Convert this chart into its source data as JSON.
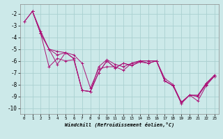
{
  "title": "",
  "xlabel": "Windchill (Refroidissement éolien,°C)",
  "ylabel": "",
  "background_color": "#cce9e9",
  "grid_color": "#aad0d0",
  "line_color": "#aa1177",
  "xlim": [
    -0.5,
    23.5
  ],
  "ylim": [
    -10.5,
    -1.2
  ],
  "xticks": [
    0,
    1,
    2,
    3,
    4,
    5,
    6,
    7,
    8,
    9,
    10,
    11,
    12,
    13,
    14,
    15,
    16,
    17,
    18,
    19,
    20,
    21,
    22,
    23
  ],
  "yticks": [
    -10,
    -9,
    -8,
    -7,
    -6,
    -5,
    -4,
    -3,
    -2
  ],
  "series": [
    {
      "x": [
        0,
        1,
        2,
        3,
        4,
        5,
        6,
        7,
        8,
        9,
        10,
        11,
        12,
        13,
        14,
        15,
        16,
        17,
        18,
        19,
        20,
        21,
        22,
        23
      ],
      "y": [
        -2.7,
        -1.8,
        -3.7,
        -5.0,
        -6.3,
        -5.3,
        -5.8,
        -8.5,
        -8.6,
        -7.0,
        -6.0,
        -6.6,
        -6.2,
        -6.4,
        -6.1,
        -6.2,
        -6.0,
        -7.7,
        -8.1,
        -9.5,
        -8.9,
        -9.4,
        -8.1,
        -7.3
      ]
    },
    {
      "x": [
        1,
        2,
        3,
        4,
        5,
        6,
        7,
        8,
        9,
        10,
        11,
        12,
        13,
        14,
        15,
        16,
        17,
        18,
        19,
        20,
        21,
        22,
        23
      ],
      "y": [
        -1.8,
        -3.7,
        -6.5,
        -5.8,
        -6.0,
        -5.9,
        -8.5,
        -8.6,
        -7.0,
        -6.0,
        -6.6,
        -6.2,
        -6.4,
        -6.0,
        -6.2,
        -6.0,
        -7.7,
        -8.1,
        -9.6,
        -8.9,
        -9.0,
        -8.0,
        -7.3
      ]
    },
    {
      "x": [
        0,
        1,
        2,
        3,
        4,
        5,
        6,
        7,
        8,
        9,
        10,
        11,
        12,
        13,
        14,
        15,
        16,
        17,
        18,
        19,
        20,
        21,
        22,
        23
      ],
      "y": [
        -2.7,
        -1.8,
        -3.5,
        -5.0,
        -5.2,
        -5.3,
        -5.5,
        -6.2,
        -8.3,
        -6.7,
        -6.5,
        -6.5,
        -6.8,
        -6.2,
        -6.0,
        -6.0,
        -6.0,
        -7.5,
        -8.0,
        -9.5,
        -8.9,
        -8.9,
        -7.9,
        -7.2
      ]
    },
    {
      "x": [
        1,
        2,
        3,
        4,
        5,
        6,
        7,
        8,
        9,
        10,
        11,
        12,
        13,
        14,
        15,
        16,
        17,
        18,
        19,
        20,
        21,
        22,
        23
      ],
      "y": [
        -1.8,
        -3.7,
        -5.0,
        -5.5,
        -5.3,
        -5.8,
        -8.5,
        -8.6,
        -6.5,
        -5.9,
        -6.3,
        -6.5,
        -6.2,
        -6.0,
        -6.0,
        -6.0,
        -7.7,
        -8.1,
        -9.6,
        -8.9,
        -9.0,
        -7.9,
        -7.3
      ]
    }
  ]
}
